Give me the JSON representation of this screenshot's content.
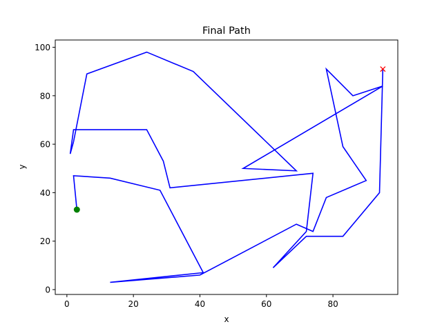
{
  "chart_data": {
    "type": "line",
    "title": "Final Path",
    "xlabel": "x",
    "ylabel": "y",
    "xlim": [
      -3.5,
      99.5
    ],
    "ylim": [
      -2,
      103
    ],
    "xticks": [
      0,
      20,
      40,
      60,
      80
    ],
    "yticks": [
      0,
      20,
      40,
      60,
      80,
      100
    ],
    "grid": false,
    "series": [
      {
        "color": "#0000ff",
        "x": [
          3,
          2,
          13,
          28,
          41,
          13,
          40,
          69,
          74,
          78,
          90,
          83,
          78,
          86,
          95,
          53,
          69,
          38,
          24,
          6,
          2,
          1,
          2,
          24,
          29,
          31,
          74,
          72,
          62,
          72,
          83,
          94,
          95
        ],
        "y": [
          33,
          47,
          46,
          41,
          7,
          3,
          6,
          27,
          24,
          38,
          45,
          59,
          91,
          80,
          84,
          50,
          49,
          90,
          98,
          89,
          61,
          56,
          66,
          66,
          53,
          42,
          48,
          24,
          9,
          22,
          22,
          40,
          91
        ]
      }
    ],
    "start": {
      "x": 3,
      "y": 33,
      "marker": "circle",
      "color": "#008000"
    },
    "end": {
      "x": 95,
      "y": 91,
      "marker": "x",
      "color": "#ff0000"
    }
  }
}
